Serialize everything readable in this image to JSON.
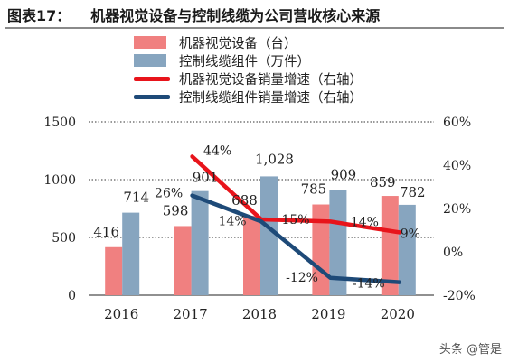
{
  "title": {
    "label": "图表17：",
    "text": "机器视觉设备与控制线缆为公司营收核心来源"
  },
  "watermark": "头条 @管是",
  "colors": {
    "bar1": "#f08080",
    "bar2": "#87a5bf",
    "line1": "#e8141b",
    "line2": "#1e4a78"
  },
  "chart_data": {
    "type": "bar",
    "categories": [
      "2016",
      "2017",
      "2018",
      "2019",
      "2020"
    ],
    "series": [
      {
        "name": "机器视觉设备（台）",
        "kind": "bar",
        "axis": "left",
        "values": [
          416,
          598,
          688,
          785,
          859
        ],
        "labels": [
          "416",
          "598",
          "688",
          "785",
          "859"
        ]
      },
      {
        "name": "控制线缆组件（万件）",
        "kind": "bar",
        "axis": "left",
        "values": [
          714,
          901,
          1028,
          909,
          782
        ],
        "labels": [
          "714",
          "901",
          "1,028",
          "909",
          "782"
        ]
      },
      {
        "name": "机器视觉设备销量增速（右轴）",
        "kind": "line",
        "axis": "right",
        "x": [
          "2017",
          "2018",
          "2019",
          "2020"
        ],
        "values": [
          44,
          15,
          14,
          9
        ],
        "labels": [
          "44%",
          "15%",
          "14%",
          "9%"
        ]
      },
      {
        "name": "控制线缆组件销量增速（右轴）",
        "kind": "line",
        "axis": "right",
        "x": [
          "2017",
          "2018",
          "2019",
          "2020"
        ],
        "values": [
          26,
          14,
          -12,
          -14
        ],
        "labels": [
          "26%",
          "14%",
          "-12%",
          "-14%"
        ]
      }
    ],
    "y_left": {
      "range": [
        0,
        1500
      ],
      "ticks": [
        "0",
        "500",
        "1000",
        "1500"
      ]
    },
    "y_right": {
      "range": [
        -20,
        60
      ],
      "ticks": [
        "-20%",
        "0%",
        "20%",
        "40%",
        "60%"
      ]
    },
    "grid": "horizontal dotted",
    "legend": "top-left"
  }
}
